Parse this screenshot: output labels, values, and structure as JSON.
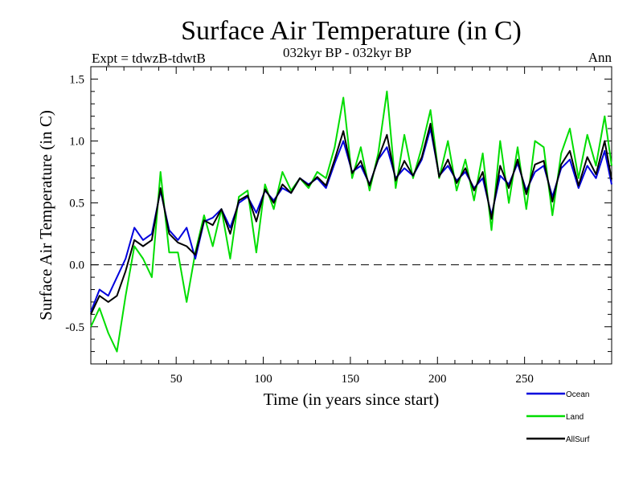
{
  "chart_data": {
    "type": "line",
    "title": "Surface Air Temperature (in C)",
    "subtitle": "032kyr BP - 032kyr BP",
    "left_label": "Expt = tdwzB-tdwtB",
    "right_label": "Ann",
    "xlabel": "Time (in years since start)",
    "ylabel": "Surface Air Temperature (in C)",
    "xlim": [
      1,
      300
    ],
    "ylim": [
      -0.8,
      1.6
    ],
    "x_ticks": [
      50,
      100,
      150,
      200,
      250
    ],
    "x_tick_labels": [
      "50",
      "100",
      "150",
      "200",
      "250"
    ],
    "y_ticks": [
      -0.5,
      0.0,
      0.5,
      1.0,
      1.5
    ],
    "y_tick_labels": [
      "-0.5",
      "0.0",
      "0.5",
      "1.0",
      "1.5"
    ],
    "zero_line": 0.0,
    "legend_position": "bottom-right, below plot",
    "series": [
      {
        "name": "Ocean",
        "color": "#0000dd",
        "x": [
          1,
          6,
          11,
          16,
          21,
          26,
          31,
          36,
          41,
          46,
          51,
          56,
          61,
          66,
          71,
          76,
          81,
          86,
          91,
          96,
          101,
          106,
          111,
          116,
          121,
          126,
          131,
          136,
          141,
          146,
          151,
          156,
          161,
          166,
          171,
          176,
          181,
          186,
          191,
          196,
          201,
          206,
          211,
          216,
          221,
          226,
          231,
          236,
          241,
          246,
          251,
          256,
          261,
          266,
          271,
          276,
          281,
          286,
          291,
          296,
          300
        ],
        "values": [
          -0.38,
          -0.2,
          -0.25,
          -0.1,
          0.05,
          0.3,
          0.2,
          0.25,
          0.6,
          0.28,
          0.2,
          0.3,
          0.05,
          0.35,
          0.38,
          0.45,
          0.3,
          0.5,
          0.55,
          0.42,
          0.6,
          0.52,
          0.62,
          0.58,
          0.7,
          0.65,
          0.7,
          0.62,
          0.82,
          1.0,
          0.75,
          0.8,
          0.65,
          0.85,
          0.95,
          0.7,
          0.78,
          0.72,
          0.85,
          1.1,
          0.72,
          0.8,
          0.68,
          0.75,
          0.62,
          0.7,
          0.4,
          0.72,
          0.65,
          0.82,
          0.6,
          0.75,
          0.8,
          0.55,
          0.78,
          0.85,
          0.62,
          0.8,
          0.7,
          0.92,
          0.65
        ]
      },
      {
        "name": "Land",
        "color": "#00dd00",
        "x": [
          1,
          6,
          11,
          16,
          21,
          26,
          31,
          36,
          41,
          46,
          51,
          56,
          61,
          66,
          71,
          76,
          81,
          86,
          91,
          96,
          101,
          106,
          111,
          116,
          121,
          126,
          131,
          136,
          141,
          146,
          151,
          156,
          161,
          166,
          171,
          176,
          181,
          186,
          191,
          196,
          201,
          206,
          211,
          216,
          221,
          226,
          231,
          236,
          241,
          246,
          251,
          256,
          261,
          266,
          271,
          276,
          281,
          286,
          291,
          296,
          300
        ],
        "values": [
          -0.5,
          -0.35,
          -0.55,
          -0.7,
          -0.25,
          0.15,
          0.05,
          -0.1,
          0.75,
          0.1,
          0.1,
          -0.3,
          0.1,
          0.4,
          0.15,
          0.45,
          0.05,
          0.55,
          0.6,
          0.1,
          0.65,
          0.45,
          0.75,
          0.6,
          0.7,
          0.62,
          0.75,
          0.7,
          0.95,
          1.35,
          0.7,
          0.95,
          0.6,
          0.9,
          1.4,
          0.62,
          1.05,
          0.7,
          0.95,
          1.25,
          0.7,
          1.0,
          0.6,
          0.85,
          0.52,
          0.9,
          0.28,
          1.0,
          0.5,
          0.95,
          0.45,
          1.0,
          0.95,
          0.4,
          0.9,
          1.1,
          0.7,
          1.05,
          0.8,
          1.2,
          0.8
        ]
      },
      {
        "name": "AllSurf",
        "color": "#000000",
        "x": [
          1,
          6,
          11,
          16,
          21,
          26,
          31,
          36,
          41,
          46,
          51,
          56,
          61,
          66,
          71,
          76,
          81,
          86,
          91,
          96,
          101,
          106,
          111,
          116,
          121,
          126,
          131,
          136,
          141,
          146,
          151,
          156,
          161,
          166,
          171,
          176,
          181,
          186,
          191,
          196,
          201,
          206,
          211,
          216,
          221,
          226,
          231,
          236,
          241,
          246,
          251,
          256,
          261,
          266,
          271,
          276,
          281,
          286,
          291,
          296,
          300
        ],
        "values": [
          -0.4,
          -0.25,
          -0.3,
          -0.25,
          -0.05,
          0.2,
          0.15,
          0.2,
          0.62,
          0.25,
          0.18,
          0.15,
          0.08,
          0.36,
          0.32,
          0.45,
          0.25,
          0.52,
          0.56,
          0.35,
          0.61,
          0.5,
          0.65,
          0.58,
          0.7,
          0.64,
          0.71,
          0.64,
          0.85,
          1.08,
          0.74,
          0.84,
          0.64,
          0.86,
          1.05,
          0.68,
          0.84,
          0.72,
          0.87,
          1.14,
          0.71,
          0.85,
          0.66,
          0.78,
          0.6,
          0.75,
          0.37,
          0.8,
          0.62,
          0.85,
          0.57,
          0.81,
          0.84,
          0.51,
          0.81,
          0.92,
          0.64,
          0.87,
          0.73,
          1.0,
          0.69
        ]
      }
    ]
  }
}
